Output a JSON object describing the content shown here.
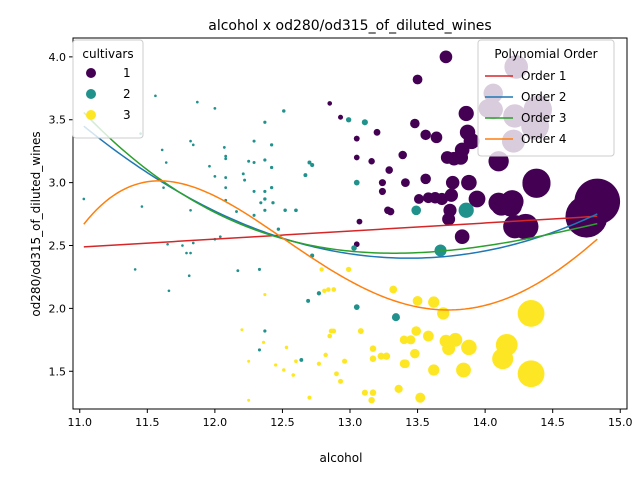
{
  "chart_data": {
    "type": "scatter",
    "title": "alcohol x od280/od315_of_diluted_wines",
    "xlabel": "alcohol",
    "ylabel": "od280/od315_of_diluted_wines",
    "xlim": [
      10.95,
      15.05
    ],
    "ylim": [
      1.2,
      4.15
    ],
    "xticks": [
      "11.0",
      "11.5",
      "12.0",
      "12.5",
      "13.0",
      "13.5",
      "14.0",
      "14.5",
      "15.0"
    ],
    "yticks": [
      "1.5",
      "2.0",
      "2.5",
      "3.0",
      "3.5",
      "4.0"
    ],
    "grid": false,
    "legend_cultivars": {
      "title": "cultivars",
      "placement": "top-left",
      "entries": [
        {
          "label": "1",
          "color": "#440154"
        },
        {
          "label": "2",
          "color": "#21918c"
        },
        {
          "label": "3",
          "color": "#fde725"
        }
      ]
    },
    "legend_poly": {
      "title": "Polynomial Order",
      "placement": "top-right",
      "entries": [
        {
          "label": "Order 1",
          "color": "#d62728"
        },
        {
          "label": "Order 2",
          "color": "#1f77b4"
        },
        {
          "label": "Order 3",
          "color": "#2ca02c"
        },
        {
          "label": "Order 4",
          "color": "#ff7f0e"
        }
      ]
    },
    "series": [
      {
        "name": "1",
        "color": "#440154",
        "points": [
          [
            14.23,
            3.92
          ],
          [
            13.2,
            3.4
          ],
          [
            13.16,
            3.17
          ],
          [
            14.37,
            3.45
          ],
          [
            13.24,
            2.93
          ],
          [
            14.2,
            2.85
          ],
          [
            14.39,
            3.58
          ],
          [
            14.06,
            3.58
          ],
          [
            14.83,
            2.85
          ],
          [
            13.86,
            3.55
          ],
          [
            14.1,
            3.17
          ],
          [
            14.12,
            2.82
          ],
          [
            13.75,
            2.9
          ],
          [
            14.75,
            2.73
          ],
          [
            14.38,
            3.0
          ],
          [
            13.63,
            2.88
          ],
          [
            14.3,
            2.65
          ],
          [
            13.83,
            2.57
          ],
          [
            14.19,
            2.82
          ],
          [
            13.64,
            3.36
          ],
          [
            14.06,
            3.71
          ],
          [
            12.93,
            3.52
          ],
          [
            13.71,
            4.0
          ],
          [
            12.85,
            3.63
          ],
          [
            13.5,
            3.82
          ],
          [
            13.05,
            3.2
          ],
          [
            13.39,
            3.22
          ],
          [
            13.3,
            2.77
          ],
          [
            13.87,
            3.4
          ],
          [
            14.02,
            3.59
          ],
          [
            13.73,
            2.71
          ],
          [
            13.58,
            2.88
          ],
          [
            13.68,
            2.87
          ],
          [
            13.76,
            3.0
          ],
          [
            13.51,
            2.87
          ],
          [
            13.48,
            3.47
          ],
          [
            13.28,
            2.78
          ],
          [
            13.05,
            2.51
          ],
          [
            13.07,
            2.69
          ],
          [
            14.22,
            3.53
          ],
          [
            13.56,
            3.38
          ],
          [
            13.41,
            3.0
          ],
          [
            13.88,
            3.0
          ],
          [
            13.24,
            3.0
          ],
          [
            13.05,
            3.35
          ],
          [
            14.21,
            3.33
          ],
          [
            14.38,
            2.99
          ],
          [
            13.9,
            3.33
          ],
          [
            14.1,
            2.84
          ],
          [
            13.94,
            2.87
          ],
          [
            13.05,
            3.35
          ],
          [
            13.83,
            3.26
          ],
          [
            13.82,
            3.2
          ],
          [
            13.77,
            3.19
          ],
          [
            13.74,
            2.78
          ],
          [
            13.56,
            3.03
          ],
          [
            14.22,
            2.65
          ],
          [
            13.29,
            3.1
          ],
          [
            13.72,
            3.2
          ]
        ]
      },
      {
        "name": "2",
        "color": "#21918c",
        "points": [
          [
            12.37,
            1.82
          ],
          [
            12.33,
            1.67
          ],
          [
            12.64,
            1.59
          ],
          [
            13.67,
            2.46
          ],
          [
            12.37,
            2.87
          ],
          [
            12.17,
            2.3
          ],
          [
            12.37,
            3.18
          ],
          [
            13.11,
            3.48
          ],
          [
            12.37,
            2.93
          ],
          [
            13.34,
            1.93
          ],
          [
            12.21,
            3.07
          ],
          [
            12.29,
            3.16
          ],
          [
            13.86,
            2.78
          ],
          [
            13.49,
            2.78
          ],
          [
            12.99,
            3.5
          ],
          [
            11.96,
            3.13
          ],
          [
            11.66,
            2.14
          ],
          [
            13.03,
            2.48
          ],
          [
            11.84,
            2.52
          ],
          [
            12.33,
            2.31
          ],
          [
            12.7,
            3.16
          ],
          [
            12.0,
            2.55
          ],
          [
            12.72,
            3.14
          ],
          [
            12.08,
            3.21
          ],
          [
            13.05,
            3.0
          ],
          [
            11.84,
            3.3
          ],
          [
            12.67,
            3.06
          ],
          [
            12.16,
            2.77
          ],
          [
            11.65,
            2.51
          ],
          [
            11.64,
            3.16
          ],
          [
            12.08,
            3.04
          ],
          [
            12.08,
            2.86
          ],
          [
            12.0,
            3.59
          ],
          [
            12.69,
            2.06
          ],
          [
            12.29,
            3.33
          ],
          [
            11.62,
            2.96
          ],
          [
            12.47,
            2.63
          ],
          [
            11.81,
            2.26
          ],
          [
            12.29,
            2.74
          ],
          [
            12.37,
            2.87
          ],
          [
            12.29,
            2.93
          ],
          [
            12.08,
            2.96
          ],
          [
            12.6,
            2.78
          ],
          [
            12.34,
            2.84
          ],
          [
            11.82,
            2.44
          ],
          [
            12.51,
            3.57
          ],
          [
            12.42,
            3.3
          ],
          [
            12.25,
            3.17
          ],
          [
            12.72,
            2.42
          ],
          [
            12.22,
            3.02
          ],
          [
            11.61,
            3.26
          ],
          [
            11.46,
            2.81
          ],
          [
            12.52,
            2.78
          ],
          [
            11.76,
            2.5
          ],
          [
            11.41,
            2.31
          ],
          [
            12.08,
            3.19
          ],
          [
            11.03,
            2.87
          ],
          [
            11.82,
            3.33
          ],
          [
            12.42,
            2.96
          ],
          [
            12.77,
            2.12
          ],
          [
            12.0,
            3.05
          ],
          [
            11.45,
            3.39
          ],
          [
            11.56,
            3.69
          ],
          [
            12.42,
            3.12
          ],
          [
            13.05,
            2.01
          ],
          [
            11.87,
            3.64
          ],
          [
            12.07,
            3.28
          ],
          [
            12.43,
            2.84
          ],
          [
            11.79,
            2.44
          ],
          [
            12.37,
            2.78
          ],
          [
            12.04,
            2.57
          ],
          [
            12.37,
            3.48
          ],
          [
            11.82,
            2.78
          ]
        ]
      },
      {
        "name": "3",
        "color": "#fde725",
        "points": [
          [
            12.86,
            1.82
          ],
          [
            12.88,
            2.15
          ],
          [
            12.81,
            2.14
          ],
          [
            12.7,
            1.29
          ],
          [
            12.51,
            1.51
          ],
          [
            12.6,
            1.58
          ],
          [
            12.25,
            1.27
          ],
          [
            12.53,
            1.69
          ],
          [
            13.49,
            1.82
          ],
          [
            12.84,
            2.15
          ],
          [
            12.93,
            1.42
          ],
          [
            13.36,
            1.36
          ],
          [
            13.52,
            1.29
          ],
          [
            13.62,
            1.51
          ],
          [
            12.25,
            1.58
          ],
          [
            13.16,
            1.27
          ],
          [
            13.88,
            1.69
          ],
          [
            12.87,
            1.82
          ],
          [
            13.32,
            2.15
          ],
          [
            13.08,
            1.82
          ],
          [
            13.5,
            2.06
          ],
          [
            12.79,
            2.31
          ],
          [
            13.11,
            1.33
          ],
          [
            13.23,
            1.62
          ],
          [
            12.58,
            1.47
          ],
          [
            13.17,
            1.33
          ],
          [
            13.84,
            1.51
          ],
          [
            12.45,
            1.55
          ],
          [
            14.34,
            1.48
          ],
          [
            13.48,
            1.64
          ],
          [
            12.36,
            1.73
          ],
          [
            13.69,
            1.96
          ],
          [
            12.85,
            1.78
          ],
          [
            12.96,
            1.58
          ],
          [
            13.78,
            1.75
          ],
          [
            13.73,
            1.68
          ],
          [
            13.45,
            1.75
          ],
          [
            12.82,
            1.63
          ],
          [
            13.58,
            1.78
          ],
          [
            13.4,
            1.75
          ],
          [
            12.2,
            1.83
          ],
          [
            12.77,
            1.56
          ],
          [
            14.16,
            1.71
          ],
          [
            13.71,
            1.74
          ],
          [
            13.4,
            1.56
          ],
          [
            13.27,
            1.62
          ],
          [
            13.17,
            1.6
          ],
          [
            14.13,
            1.6
          ],
          [
            12.99,
            2.31
          ],
          [
            13.17,
            1.68
          ],
          [
            14.34,
            1.96
          ],
          [
            13.62,
            2.05
          ],
          [
            12.9,
            1.48
          ],
          [
            13.41,
            1.56
          ],
          [
            12.88,
            1.82
          ],
          [
            12.37,
            2.11
          ]
        ]
      }
    ],
    "fit_curves": [
      {
        "name": "Order 1",
        "color": "#d62728",
        "coefficients": [
          2.4887,
          0.0641
        ],
        "x_ref": 11.03
      },
      {
        "name": "Order 2",
        "color": "#1f77b4",
        "coefficients": [
          3.449,
          -0.8722,
          0.1812
        ],
        "x_ref": 11.03
      },
      {
        "name": "Order 3",
        "color": "#2ca02c",
        "coefficients": [
          3.5575,
          -1.1248,
          0.3431,
          -0.0285
        ],
        "x_ref": 11.03
      },
      {
        "name": "Order 4",
        "color": "#ff7f0e",
        "coefficients": [
          2.6691,
          1.3706,
          -1.6073,
          0.4874,
          -0.0425
        ],
        "x_ref": 11.03
      }
    ],
    "x_fit_range": [
      11.03,
      14.83
    ]
  }
}
